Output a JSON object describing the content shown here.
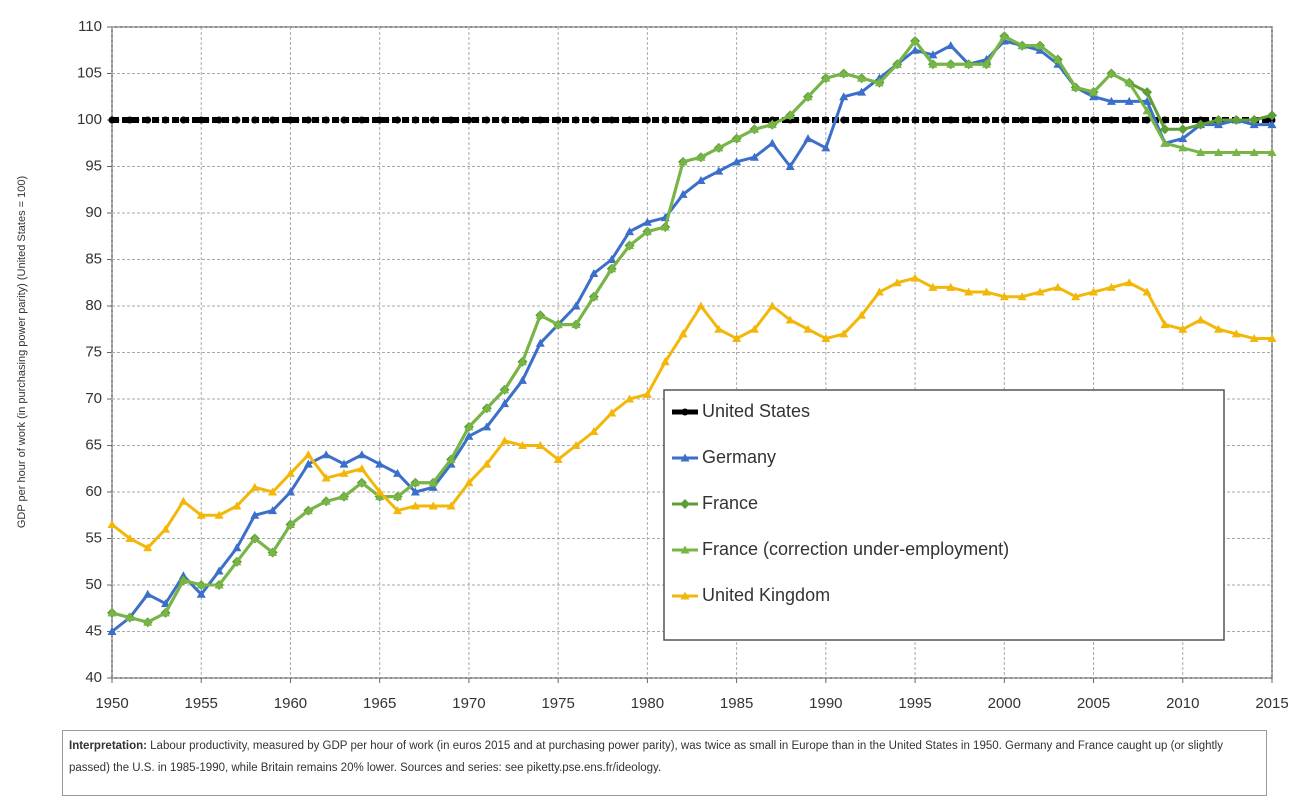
{
  "chart_data": {
    "type": "line",
    "y_label": "GDP per hour of work (in purchasing power parity) (United States = 100)",
    "annotation_label": "Interpretation:",
    "annotation": "Labour productivity, measured by GDP per hour of work (in euros 2015 and at purchasing power parity), was twice as small in Europe than in the United States in 1950. Germany and France caught up (or slightly passed) the U.S. in 1985-1990, while Britain remains 20% lower. Sources and series: see piketty.pse.ens.fr/ideology.",
    "x": [
      1950,
      1951,
      1952,
      1953,
      1954,
      1955,
      1956,
      1957,
      1958,
      1959,
      1960,
      1961,
      1962,
      1963,
      1964,
      1965,
      1966,
      1967,
      1968,
      1969,
      1970,
      1971,
      1972,
      1973,
      1974,
      1975,
      1976,
      1977,
      1978,
      1979,
      1980,
      1981,
      1982,
      1983,
      1984,
      1985,
      1986,
      1987,
      1988,
      1989,
      1990,
      1991,
      1992,
      1993,
      1994,
      1995,
      1996,
      1997,
      1998,
      1999,
      2000,
      2001,
      2002,
      2003,
      2004,
      2005,
      2006,
      2007,
      2008,
      2009,
      2010,
      2011,
      2012,
      2013,
      2014,
      2015
    ],
    "xlim": [
      1950,
      2015
    ],
    "xticks": [
      1950,
      1955,
      1960,
      1965,
      1970,
      1975,
      1980,
      1985,
      1990,
      1995,
      2000,
      2005,
      2010,
      2015
    ],
    "ylim": [
      40,
      110
    ],
    "yticks": [
      40,
      45,
      50,
      55,
      60,
      65,
      70,
      75,
      80,
      85,
      90,
      95,
      100,
      105,
      110
    ],
    "grid": true,
    "legend": "lower right",
    "series": [
      {
        "name": "United States",
        "color": "#000000",
        "marker": "circle",
        "line_style": "dotted",
        "values": [
          100,
          100,
          100,
          100,
          100,
          100,
          100,
          100,
          100,
          100,
          100,
          100,
          100,
          100,
          100,
          100,
          100,
          100,
          100,
          100,
          100,
          100,
          100,
          100,
          100,
          100,
          100,
          100,
          100,
          100,
          100,
          100,
          100,
          100,
          100,
          100,
          100,
          100,
          100,
          100,
          100,
          100,
          100,
          100,
          100,
          100,
          100,
          100,
          100,
          100,
          100,
          100,
          100,
          100,
          100,
          100,
          100,
          100,
          100,
          100,
          100,
          100,
          100,
          100,
          100,
          100
        ]
      },
      {
        "name": "Germany",
        "color": "#3b6fc9",
        "marker": "triangle",
        "line_style": "solid",
        "values": [
          45,
          46.5,
          49,
          48,
          51,
          49,
          51.5,
          54,
          57.5,
          58,
          60,
          63,
          64,
          63,
          64,
          63,
          62,
          60,
          60.5,
          63,
          66,
          67,
          69.5,
          72,
          76,
          78,
          80,
          83.5,
          85,
          88,
          89,
          89.5,
          92,
          93.5,
          94.5,
          95.5,
          96,
          97.5,
          95,
          98,
          97,
          102.5,
          103,
          104.5,
          106,
          107.5,
          107,
          108,
          106,
          106.5,
          108.5,
          108,
          107.5,
          106,
          103.5,
          102.5,
          102,
          102,
          102,
          97.5,
          98,
          99.5,
          99.5,
          100,
          99.5,
          99.5
        ]
      },
      {
        "name": "France",
        "color": "#5f9e36",
        "marker": "diamond",
        "line_style": "solid",
        "values": [
          47,
          46.5,
          46,
          47,
          50.5,
          50,
          50,
          52.5,
          55,
          53.5,
          56.5,
          58,
          59,
          59.5,
          61,
          59.5,
          59.5,
          61,
          61,
          63.5,
          67,
          69,
          71,
          74,
          79,
          78,
          78,
          81,
          84,
          86.5,
          88,
          88.5,
          95.5,
          96,
          97,
          98,
          99,
          99.5,
          100.5,
          102.5,
          104.5,
          105,
          104.5,
          104,
          106,
          108.5,
          106,
          106,
          106,
          106,
          109,
          108,
          108,
          106.5,
          103.5,
          103,
          105,
          104,
          103,
          99,
          99,
          99.5,
          100,
          100,
          100,
          100.5
        ]
      },
      {
        "name": "France (correction under-employment)",
        "color": "#78b547",
        "marker": "triangle",
        "line_style": "solid",
        "values": [
          47,
          46.5,
          46,
          47,
          50.5,
          50,
          50,
          52.5,
          55,
          53.5,
          56.5,
          58,
          59,
          59.5,
          61,
          59.5,
          59.5,
          61,
          61,
          63.5,
          67,
          69,
          71,
          74,
          79,
          78,
          78,
          81,
          84,
          86.5,
          88,
          88.5,
          95.5,
          96,
          97,
          98,
          99,
          99.5,
          100.5,
          102.5,
          104.5,
          105,
          104.5,
          104,
          106,
          108.5,
          106,
          106,
          106,
          106,
          109,
          108,
          108,
          106.5,
          103.5,
          103,
          105,
          104,
          101,
          97.5,
          97,
          96.5,
          96.5,
          96.5,
          96.5,
          96.5
        ]
      },
      {
        "name": "United Kingdom",
        "color": "#f3b70a",
        "marker": "triangle",
        "line_style": "solid",
        "values": [
          56.5,
          55,
          54,
          56,
          59,
          57.5,
          57.5,
          58.5,
          60.5,
          60,
          62,
          64,
          61.5,
          62,
          62.5,
          60,
          58,
          58.5,
          58.5,
          58.5,
          61,
          63,
          65.5,
          65,
          65,
          63.5,
          65,
          66.5,
          68.5,
          70,
          70.5,
          74,
          77,
          80,
          77.5,
          76.5,
          77.5,
          80,
          78.5,
          77.5,
          76.5,
          77,
          79,
          81.5,
          82.5,
          83,
          82,
          82,
          81.5,
          81.5,
          81,
          81,
          81.5,
          82,
          81,
          81.5,
          82,
          82.5,
          81.5,
          78,
          77.5,
          78.5,
          77.5,
          77,
          76.5,
          76.5
        ]
      }
    ]
  }
}
